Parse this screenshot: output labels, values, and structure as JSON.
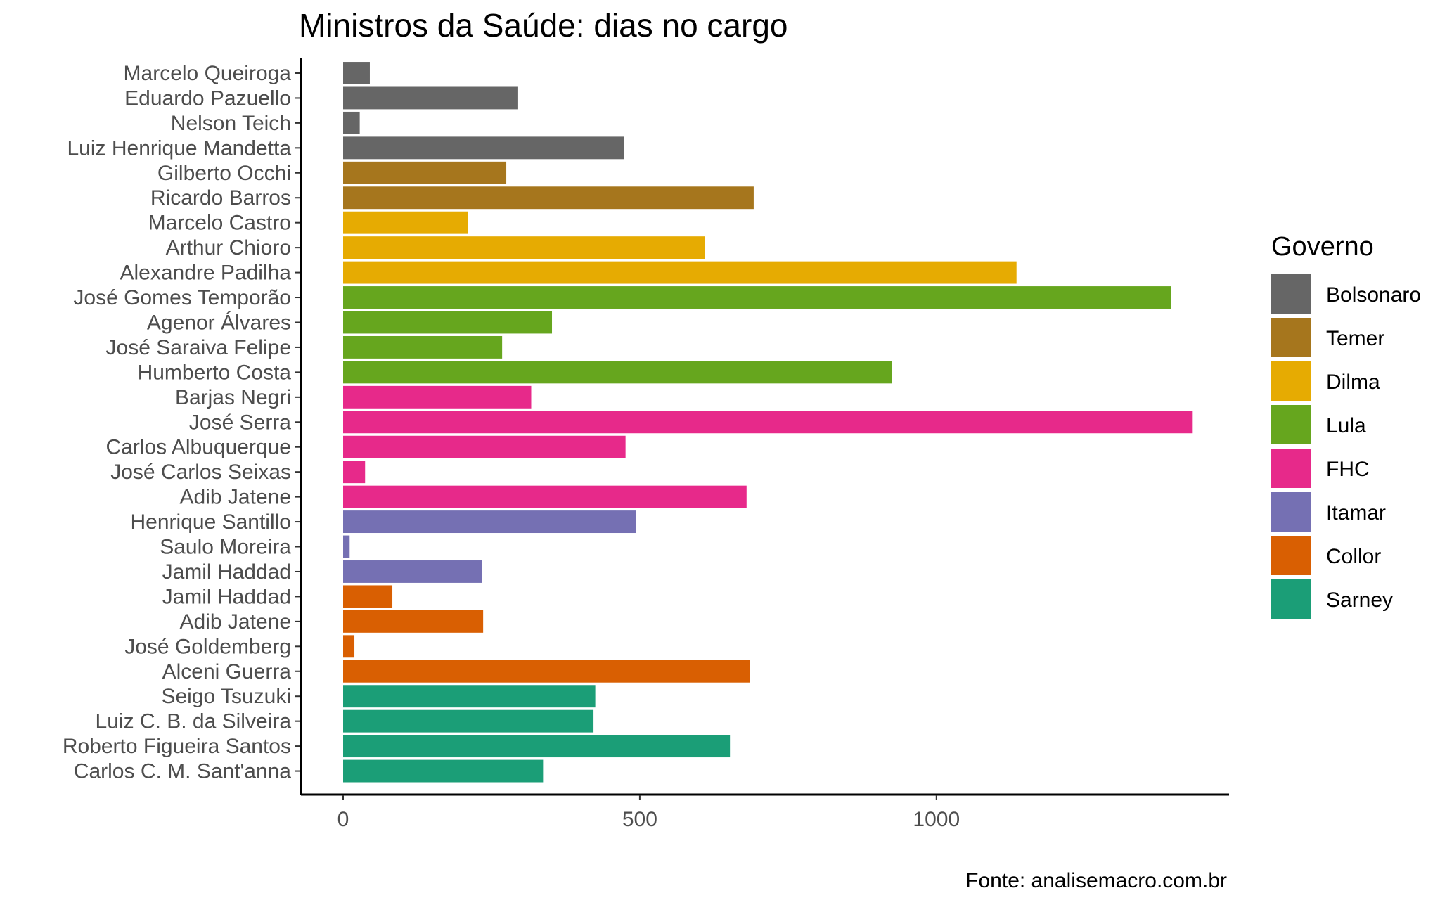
{
  "chart_data": {
    "type": "bar",
    "orientation": "horizontal",
    "title": "Ministros da Saúde: dias no cargo",
    "xlabel": "",
    "ylabel": "",
    "caption": "Fonte: analisemacro.com.br",
    "xlim": [
      0,
      1500
    ],
    "x_ticks": [
      0,
      500,
      1000
    ],
    "x_tick_labels": [
      "0",
      "500",
      "1000"
    ],
    "grid": false,
    "legend": {
      "title": "Governo",
      "position": "right",
      "entries": [
        {
          "name": "Bolsonaro",
          "color": "#666666"
        },
        {
          "name": "Temer",
          "color": "#A6761D"
        },
        {
          "name": "Dilma",
          "color": "#E6AB02"
        },
        {
          "name": "Lula",
          "color": "#66A61E"
        },
        {
          "name": "FHC",
          "color": "#E7298A"
        },
        {
          "name": "Itamar",
          "color": "#7570B3"
        },
        {
          "name": "Collor",
          "color": "#D95F02"
        },
        {
          "name": "Sarney",
          "color": "#1B9E77"
        }
      ]
    },
    "bars": [
      {
        "category": "Marcelo Queiroga",
        "value": 45,
        "group": "Bolsonaro"
      },
      {
        "category": "Eduardo Pazuello",
        "value": 295,
        "group": "Bolsonaro"
      },
      {
        "category": "Nelson Teich",
        "value": 28,
        "group": "Bolsonaro"
      },
      {
        "category": "Luiz Henrique Mandetta",
        "value": 473,
        "group": "Bolsonaro"
      },
      {
        "category": "Gilberto Occhi",
        "value": 275,
        "group": "Temer"
      },
      {
        "category": "Ricardo Barros",
        "value": 692,
        "group": "Temer"
      },
      {
        "category": "Marcelo Castro",
        "value": 210,
        "group": "Dilma"
      },
      {
        "category": "Arthur Chioro",
        "value": 610,
        "group": "Dilma"
      },
      {
        "category": "Alexandre Padilha",
        "value": 1135,
        "group": "Dilma"
      },
      {
        "category": "José Gomes Temporão",
        "value": 1395,
        "group": "Lula"
      },
      {
        "category": "Agenor Álvares",
        "value": 352,
        "group": "Lula"
      },
      {
        "category": "José Saraiva Felipe",
        "value": 268,
        "group": "Lula"
      },
      {
        "category": "Humberto Costa",
        "value": 925,
        "group": "Lula"
      },
      {
        "category": "Barjas Negri",
        "value": 317,
        "group": "FHC"
      },
      {
        "category": "José Serra",
        "value": 1432,
        "group": "FHC"
      },
      {
        "category": "Carlos Albuquerque",
        "value": 476,
        "group": "FHC"
      },
      {
        "category": "José Carlos Seixas",
        "value": 37,
        "group": "FHC"
      },
      {
        "category": "Adib Jatene",
        "value": 680,
        "group": "FHC"
      },
      {
        "category": "Henrique Santillo",
        "value": 493,
        "group": "Itamar"
      },
      {
        "category": "Saulo Moreira",
        "value": 11,
        "group": "Itamar"
      },
      {
        "category": "Jamil Haddad",
        "value": 234,
        "group": "Itamar"
      },
      {
        "category": "Jamil Haddad",
        "value": 83,
        "group": "Collor"
      },
      {
        "category": "Adib Jatene",
        "value": 236,
        "group": "Collor"
      },
      {
        "category": "José Goldemberg",
        "value": 19,
        "group": "Collor"
      },
      {
        "category": "Alceni Guerra",
        "value": 685,
        "group": "Collor"
      },
      {
        "category": "Seigo Tsuzuki",
        "value": 425,
        "group": "Sarney"
      },
      {
        "category": "Luiz C. B. da Silveira",
        "value": 422,
        "group": "Sarney"
      },
      {
        "category": "Roberto Figueira Santos",
        "value": 652,
        "group": "Sarney"
      },
      {
        "category": "Carlos C. M. Sant'anna",
        "value": 337,
        "group": "Sarney"
      }
    ]
  }
}
